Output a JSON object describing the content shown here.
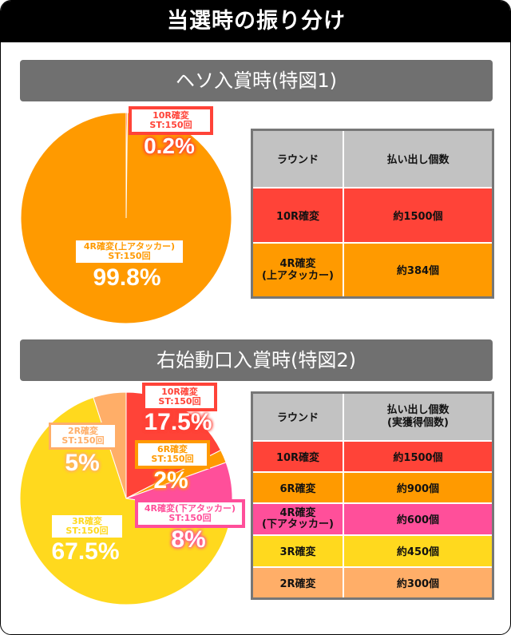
{
  "title": "当選時の振り分け",
  "sections": [
    {
      "heading": "ヘソ入賞時(特図1)",
      "table": {
        "headers": [
          "ラウンド",
          "払い出し個数"
        ],
        "rows": [
          {
            "round": "10R確変",
            "payout": "約1500個",
            "color": "#ff4338"
          },
          {
            "round": "4R確変\n(上アタッカー)",
            "payout": "約384個",
            "color": "#ff9a00"
          }
        ]
      },
      "labels": [
        {
          "name": "10R確変",
          "sub": "ST:150回",
          "pct": "0.2%",
          "color": "#ff4338"
        },
        {
          "name": "4R確変(上アタッカー)",
          "sub": "ST:150回",
          "pct": "99.8%",
          "color": "#ff9a00"
        }
      ]
    },
    {
      "heading": "右始動口入賞時(特図2)",
      "table": {
        "headers": [
          "ラウンド",
          "払い出し個数\n(実獲得個数)"
        ],
        "rows": [
          {
            "round": "10R確変",
            "payout": "約1500個",
            "color": "#ff4338"
          },
          {
            "round": "6R確変",
            "payout": "約900個",
            "color": "#ff9a00"
          },
          {
            "round": "4R確変\n(下アタッカー)",
            "payout": "約600個",
            "color": "#ff4f9a"
          },
          {
            "round": "3R確変",
            "payout": "約450個",
            "color": "#ffd91e"
          },
          {
            "round": "2R確変",
            "payout": "約300個",
            "color": "#ffae68"
          }
        ]
      },
      "labels": [
        {
          "name": "10R確変",
          "sub": "ST:150回",
          "pct": "17.5%",
          "color": "#ff4338"
        },
        {
          "name": "6R確変",
          "sub": "ST:150回",
          "pct": "2%",
          "color": "#ff9a00"
        },
        {
          "name": "4R確変(下アタッカー)",
          "sub": "ST:150回",
          "pct": "8%",
          "color": "#ff4f9a"
        },
        {
          "name": "3R確変",
          "sub": "ST:150回",
          "pct": "67.5%",
          "color": "#ffd91e"
        },
        {
          "name": "2R確変",
          "sub": "ST:150回",
          "pct": "5%",
          "color": "#ffae68"
        }
      ]
    }
  ],
  "chart_data": [
    {
      "type": "pie",
      "title": "ヘソ入賞時(特図1)",
      "categories": [
        "10R確変 ST:150回",
        "4R確変(上アタッカー) ST:150回"
      ],
      "values": [
        0.2,
        99.8
      ],
      "colors": [
        "#ff4338",
        "#ff9a00"
      ],
      "start_angle": "12 o'clock, clockwise"
    },
    {
      "type": "pie",
      "title": "右始動口入賞時(特図2)",
      "categories": [
        "10R確変 ST:150回",
        "6R確変 ST:150回",
        "4R確変(下アタッカー) ST:150回",
        "3R確変 ST:150回",
        "2R確変 ST:150回"
      ],
      "values": [
        17.5,
        2,
        8,
        67.5,
        5
      ],
      "colors": [
        "#ff4338",
        "#ff9a00",
        "#ff4f9a",
        "#ffd91e",
        "#ffae68"
      ],
      "start_angle": "12 o'clock, clockwise"
    }
  ]
}
